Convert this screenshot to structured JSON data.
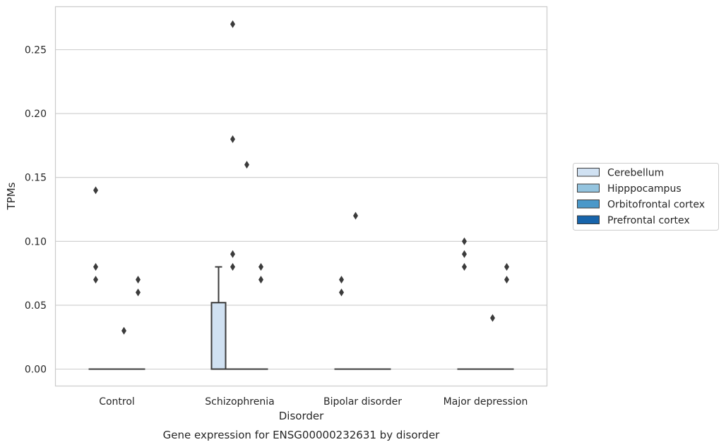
{
  "chart_data": {
    "type": "box",
    "title": "",
    "caption": "Gene expression for ENSG00000232631 by disorder",
    "xlabel": "Disorder",
    "ylabel": "TPMs",
    "ylim": [
      -0.013,
      0.284
    ],
    "yticks": [
      0.0,
      0.05,
      0.1,
      0.15,
      0.2,
      0.25
    ],
    "ytick_labels": [
      "0.00",
      "0.05",
      "0.10",
      "0.15",
      "0.20",
      "0.25"
    ],
    "grid": "horizontal",
    "legend_position": "right",
    "categories": [
      "Control",
      "Schizophrenia",
      "Bipolar disorder",
      "Major depression"
    ],
    "series": [
      {
        "name": "Cerebellum",
        "color": "#d0e1f2",
        "boxes": [
          {
            "q1": 0,
            "median": 0,
            "q3": 0,
            "whisker_low": 0,
            "whisker_high": 0,
            "outliers": [
              0.07,
              0.08,
              0.14
            ]
          },
          {
            "q1": 0,
            "median": 0,
            "q3": 0.052,
            "whisker_low": 0,
            "whisker_high": 0.08,
            "outliers": []
          },
          {
            "q1": 0,
            "median": 0,
            "q3": 0,
            "whisker_low": 0,
            "whisker_high": 0,
            "outliers": [
              0.06,
              0.07
            ]
          },
          {
            "q1": 0,
            "median": 0,
            "q3": 0,
            "whisker_low": 0,
            "whisker_high": 0,
            "outliers": [
              0.08,
              0.09,
              0.1
            ]
          }
        ]
      },
      {
        "name": "Hipppocampus",
        "color": "#94c4df",
        "boxes": [
          {
            "q1": 0,
            "median": 0,
            "q3": 0,
            "whisker_low": 0,
            "whisker_high": 0,
            "outliers": []
          },
          {
            "q1": 0,
            "median": 0,
            "q3": 0,
            "whisker_low": 0,
            "whisker_high": 0,
            "outliers": [
              0.08,
              0.09,
              0.18,
              0.27
            ]
          },
          {
            "q1": 0,
            "median": 0,
            "q3": 0,
            "whisker_low": 0,
            "whisker_high": 0,
            "outliers": [
              0.12
            ]
          },
          {
            "q1": 0,
            "median": 0,
            "q3": 0,
            "whisker_low": 0,
            "whisker_high": 0,
            "outliers": []
          }
        ]
      },
      {
        "name": "Orbitofrontal cortex",
        "color": "#4a98c9",
        "boxes": [
          {
            "q1": 0,
            "median": 0,
            "q3": 0,
            "whisker_low": 0,
            "whisker_high": 0,
            "outliers": [
              0.03
            ]
          },
          {
            "q1": 0,
            "median": 0,
            "q3": 0,
            "whisker_low": 0,
            "whisker_high": 0,
            "outliers": [
              0.16
            ]
          },
          {
            "q1": 0,
            "median": 0,
            "q3": 0,
            "whisker_low": 0,
            "whisker_high": 0,
            "outliers": []
          },
          {
            "q1": 0,
            "median": 0,
            "q3": 0,
            "whisker_low": 0,
            "whisker_high": 0,
            "outliers": [
              0.04
            ]
          }
        ]
      },
      {
        "name": "Prefrontal cortex",
        "color": "#1764ab",
        "boxes": [
          {
            "q1": 0,
            "median": 0,
            "q3": 0,
            "whisker_low": 0,
            "whisker_high": 0,
            "outliers": [
              0.06,
              0.07
            ]
          },
          {
            "q1": 0,
            "median": 0,
            "q3": 0,
            "whisker_low": 0,
            "whisker_high": 0,
            "outliers": [
              0.07,
              0.08
            ]
          },
          {
            "q1": 0,
            "median": 0,
            "q3": 0,
            "whisker_low": 0,
            "whisker_high": 0,
            "outliers": []
          },
          {
            "q1": 0,
            "median": 0,
            "q3": 0,
            "whisker_low": 0,
            "whisker_high": 0,
            "outliers": [
              0.07,
              0.08
            ]
          }
        ]
      }
    ]
  }
}
